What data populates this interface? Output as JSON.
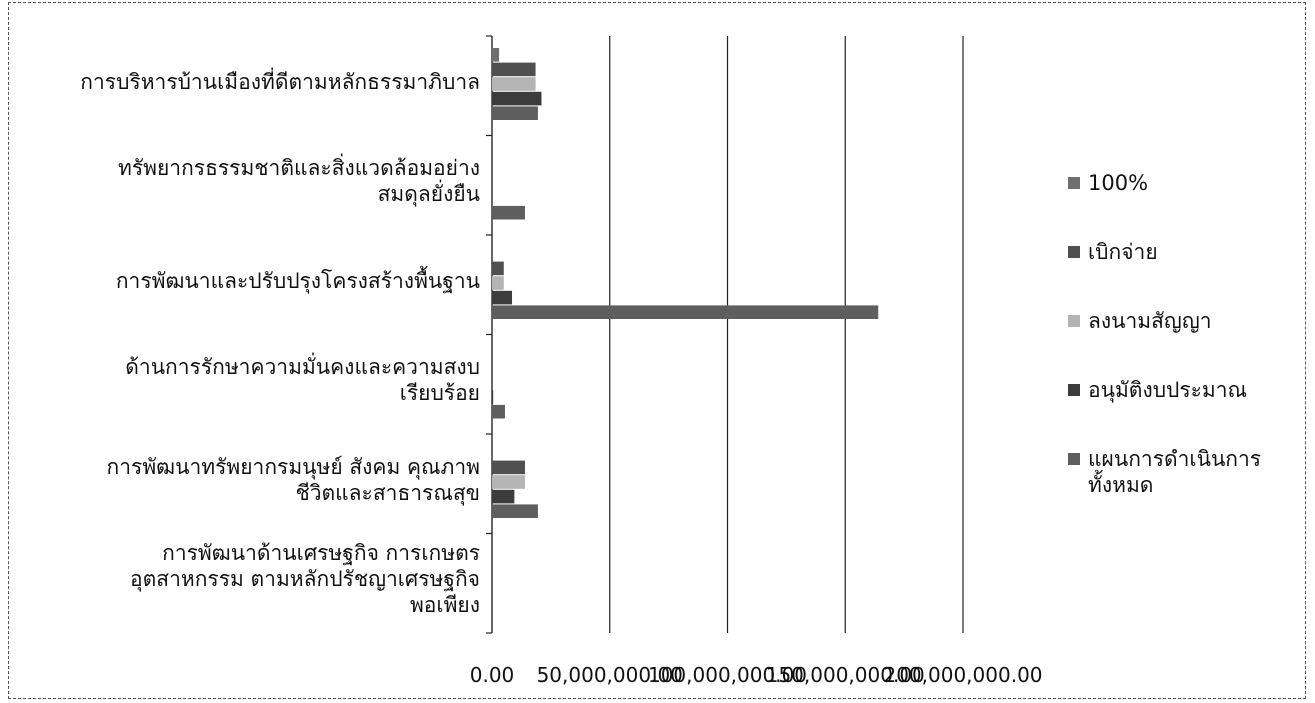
{
  "chart_data": {
    "type": "bar",
    "orientation": "horizontal",
    "categories": [
      "การบริหารบ้านเมืองที่ดีตามหลักธรรมาภิบาล",
      "ทรัพยากรธรรมชาติและสิ่งแวดล้อมอย่าง\nสมดุลยั่งยืน",
      "การพัฒนาและปรับปรุงโครงสร้างพื้นฐาน",
      "ด้านการรักษาความมั่นคงและความสงบ\nเรียบร้อย",
      "การพัฒนาทรัพยากรมนุษย์ สังคม คุณภาพ\nชีวิตและสาธารณสุข",
      "การพัฒนาด้านเศรษฐกิจ การเกษตร\nอุตสาหกรรม  ตามหลักปรัชญาเศรษฐกิจ\nพอเพียง"
    ],
    "series": [
      {
        "name": "100%",
        "color": "#6f6f6f",
        "values": [
          3000000,
          0,
          0,
          0,
          0,
          0
        ]
      },
      {
        "name": "เบิกจ่าย",
        "color": "#505050",
        "values": [
          18500000,
          0,
          5000000,
          0,
          14000000,
          0
        ]
      },
      {
        "name": "ลงนามสัญญา",
        "color": "#b4b4b4",
        "values": [
          18500000,
          0,
          5000000,
          0,
          14000000,
          0
        ]
      },
      {
        "name": "อนุมัติงบประมาณ",
        "color": "#3c3c3c",
        "values": [
          21000000,
          0,
          8500000,
          500000,
          9500000,
          0
        ]
      },
      {
        "name": "แผนการดำเนินการ\nทั้งหมด",
        "color": "#5e5e5e",
        "values": [
          19500000,
          14000000,
          164000000,
          5500000,
          19500000,
          0
        ]
      }
    ],
    "x_ticks": [
      "0.00",
      "50,000,000.00",
      "100,000,000.00",
      "150,000,000.00",
      "200,000,000.00"
    ],
    "xlim": [
      0,
      200000000
    ],
    "grid": true,
    "legend_position": "right"
  }
}
